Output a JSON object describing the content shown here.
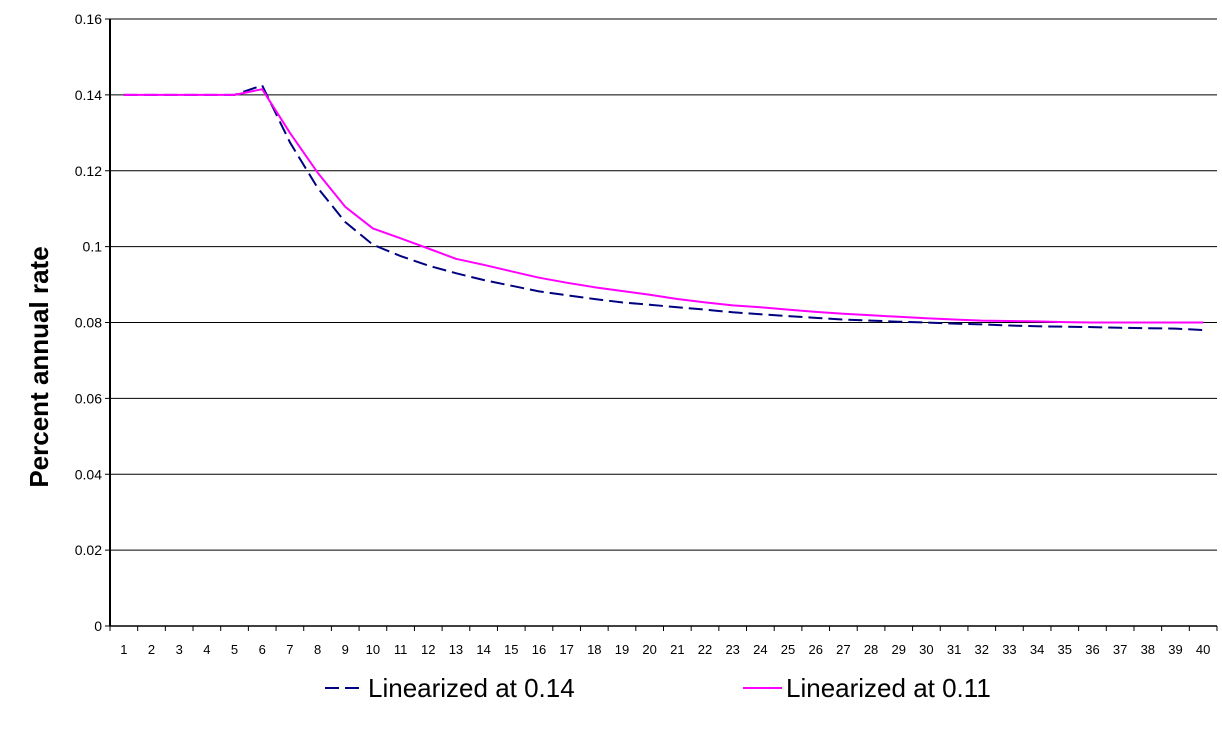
{
  "chart_data": {
    "type": "line",
    "title": "",
    "xlabel": "",
    "ylabel": "Percent annual rate",
    "x": [
      1,
      2,
      3,
      4,
      5,
      6,
      7,
      8,
      9,
      10,
      11,
      12,
      13,
      14,
      15,
      16,
      17,
      18,
      19,
      20,
      21,
      22,
      23,
      24,
      25,
      26,
      27,
      28,
      29,
      30,
      31,
      32,
      33,
      34,
      35,
      36,
      37,
      38,
      39,
      40
    ],
    "ylim": [
      0,
      0.16
    ],
    "yticks": [
      "0",
      "0.02",
      "0.04",
      "0.06",
      "0.08",
      "0.1",
      "0.12",
      "0.14",
      "0.16"
    ],
    "grid": "horizontal",
    "legend_position": "bottom",
    "series": [
      {
        "name": "Linearized at 0.14",
        "color": "#000080",
        "dash": "dashed",
        "values": [
          0.14,
          0.14,
          0.14,
          0.14,
          0.14,
          0.1425,
          0.1275,
          0.1155,
          0.1065,
          0.1005,
          0.0975,
          0.095,
          0.093,
          0.0912,
          0.0897,
          0.0882,
          0.0872,
          0.0862,
          0.0853,
          0.0847,
          0.084,
          0.0834,
          0.0827,
          0.0822,
          0.0817,
          0.0812,
          0.0808,
          0.0805,
          0.0802,
          0.08,
          0.0797,
          0.0795,
          0.0792,
          0.079,
          0.0789,
          0.0788,
          0.0786,
          0.0785,
          0.0784,
          0.078
        ]
      },
      {
        "name": "Linearized at 0.11",
        "color": "#ff00ff",
        "dash": "solid",
        "values": [
          0.14,
          0.14,
          0.14,
          0.14,
          0.14,
          0.1415,
          0.13,
          0.1195,
          0.1105,
          0.1048,
          0.1022,
          0.0995,
          0.0968,
          0.0952,
          0.0935,
          0.0918,
          0.0905,
          0.0893,
          0.0883,
          0.0873,
          0.0862,
          0.0853,
          0.0845,
          0.084,
          0.0834,
          0.0828,
          0.0823,
          0.0819,
          0.0815,
          0.0811,
          0.0808,
          0.0805,
          0.0804,
          0.0803,
          0.0801,
          0.08,
          0.08,
          0.08,
          0.08,
          0.08
        ]
      }
    ]
  }
}
